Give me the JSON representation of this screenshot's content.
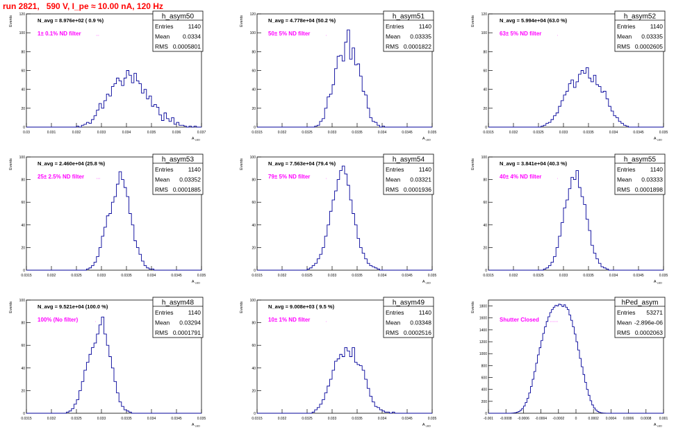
{
  "page_title": "run 2821,   590 V, I_pe ≈ 10.00 nA, 120 Hz",
  "colors": {
    "title": "#ff0000",
    "hist_line": "#000099",
    "filter_label": "#ff00ff",
    "frame": "#000000"
  },
  "chart_data": [
    {
      "type": "bar",
      "name": "h_asym50",
      "navg": "N_avg = 8.976e+02 ( 0.9 %)",
      "filter": "1± 0.1% ND filter",
      "stats": {
        "entries_label": "Entries",
        "entries": "1140",
        "mean_label": "Mean",
        "mean": "0.0334",
        "rms_label": "RMS",
        "rms": "0.0005801"
      },
      "xlim": [
        0.03,
        0.037
      ],
      "ylim": [
        0,
        120
      ],
      "xticks": [
        "0.03",
        "0.031",
        "0.032",
        "0.033",
        "0.034",
        "0.035",
        "0.036",
        "0.037"
      ],
      "yticks": [
        "0",
        "20",
        "40",
        "60",
        "80",
        "100",
        "120"
      ],
      "ylabel": "Events",
      "xlabel": "A_LED",
      "bin_start": 0.03,
      "bin_width": 0.0001,
      "values": [
        0,
        0,
        0,
        0,
        0,
        0,
        0,
        0,
        0,
        0,
        0,
        0,
        0,
        0,
        0,
        0,
        0,
        0,
        0,
        0,
        1,
        0,
        2,
        3,
        5,
        4,
        8,
        12,
        18,
        25,
        20,
        28,
        35,
        33,
        43,
        46,
        52,
        49,
        44,
        52,
        60,
        55,
        47,
        57,
        49,
        46,
        36,
        40,
        30,
        33,
        22,
        24,
        21,
        13,
        7,
        15,
        9,
        6,
        10,
        3,
        5,
        2,
        2,
        1,
        0,
        1,
        0,
        1,
        0,
        0
      ]
    },
    {
      "type": "bar",
      "name": "h_asym51",
      "navg": "N_avg = 4.778e+04 (50.2 %)",
      "filter": "50± 5% ND filter",
      "stats": {
        "entries_label": "Entries",
        "entries": "1140",
        "mean_label": "Mean",
        "mean": "0.03335",
        "rms_label": "RMS",
        "rms": "0.0001822"
      },
      "xlim": [
        0.0315,
        0.035
      ],
      "ylim": [
        0,
        120
      ],
      "xticks": [
        "0.0315",
        "0.032",
        "0.0325",
        "0.033",
        "0.0335",
        "0.034",
        "0.0345",
        "0.035"
      ],
      "yticks": [
        "0",
        "20",
        "40",
        "60",
        "80",
        "100",
        "120"
      ],
      "ylabel": "Events",
      "xlabel": "A_LED",
      "bin_start": 0.0315,
      "bin_width": 5e-05,
      "values": [
        0,
        0,
        0,
        0,
        0,
        0,
        0,
        0,
        0,
        0,
        0,
        0,
        0,
        0,
        0,
        0,
        0,
        0,
        0,
        0,
        0,
        0,
        0,
        1,
        2,
        6,
        9,
        20,
        32,
        35,
        45,
        62,
        75,
        76,
        70,
        90,
        103,
        72,
        84,
        66,
        67,
        54,
        38,
        34,
        20,
        10,
        6,
        5,
        2,
        0,
        1,
        0,
        0,
        0,
        0,
        0,
        0,
        0,
        0,
        0,
        0,
        0,
        0,
        0,
        0,
        0,
        0,
        0,
        0,
        0
      ]
    },
    {
      "type": "bar",
      "name": "h_asym52",
      "navg": "N_avg = 5.994e+04 (63.0 %)",
      "filter": "63± 5% ND filter",
      "stats": {
        "entries_label": "Entries",
        "entries": "1140",
        "mean_label": "Mean",
        "mean": "0.03335",
        "rms_label": "RMS",
        "rms": "0.0002605"
      },
      "xlim": [
        0.0315,
        0.035
      ],
      "ylim": [
        0,
        120
      ],
      "xticks": [
        "0.0315",
        "0.032",
        "0.0325",
        "0.033",
        "0.0335",
        "0.034",
        "0.0345",
        "0.035"
      ],
      "yticks": [
        "0",
        "20",
        "40",
        "60",
        "80",
        "100",
        "120"
      ],
      "ylabel": "Events",
      "xlabel": "A_LED",
      "bin_start": 0.0315,
      "bin_width": 5e-05,
      "values": [
        0,
        0,
        0,
        0,
        0,
        0,
        0,
        0,
        0,
        0,
        0,
        0,
        0,
        0,
        0,
        0,
        0,
        0,
        0,
        0,
        0,
        1,
        2,
        4,
        5,
        8,
        12,
        15,
        22,
        28,
        34,
        38,
        46,
        50,
        42,
        48,
        56,
        60,
        57,
        63,
        52,
        48,
        55,
        45,
        43,
        37,
        38,
        30,
        22,
        17,
        12,
        10,
        6,
        4,
        2,
        1,
        0,
        0,
        0,
        0,
        0,
        0,
        0,
        0,
        0,
        0,
        0,
        0,
        0,
        0
      ]
    },
    {
      "type": "bar",
      "name": "h_asym53",
      "navg": "N_avg = 2.460e+04 (25.8 %)",
      "filter": "25± 2.5% ND filter",
      "stats": {
        "entries_label": "Entries",
        "entries": "1140",
        "mean_label": "Mean",
        "mean": "0.03352",
        "rms_label": "RMS",
        "rms": "0.0001885"
      },
      "xlim": [
        0.0315,
        0.035
      ],
      "ylim": [
        0,
        100
      ],
      "xticks": [
        "0.0315",
        "0.032",
        "0.0325",
        "0.033",
        "0.0335",
        "0.034",
        "0.0345",
        "0.035"
      ],
      "yticks": [
        "0",
        "20",
        "40",
        "60",
        "80",
        "100"
      ],
      "ylabel": "Events",
      "xlabel": "A_LED",
      "bin_start": 0.0315,
      "bin_width": 5e-05,
      "values": [
        0,
        0,
        0,
        0,
        0,
        0,
        0,
        0,
        0,
        0,
        0,
        0,
        0,
        0,
        0,
        0,
        0,
        0,
        0,
        0,
        0,
        0,
        0,
        0,
        1,
        2,
        4,
        7,
        12,
        20,
        30,
        38,
        48,
        50,
        60,
        65,
        76,
        87,
        80,
        73,
        65,
        50,
        40,
        26,
        20,
        14,
        8,
        4,
        2,
        1,
        1,
        0,
        0,
        0,
        0,
        0,
        0,
        0,
        0,
        0,
        0,
        0,
        0,
        0,
        0,
        0,
        0,
        0,
        0,
        0
      ]
    },
    {
      "type": "bar",
      "name": "h_asym54",
      "navg": "N_avg = 7.563e+04 (79.4 %)",
      "filter": "79± 5% ND filter",
      "stats": {
        "entries_label": "Entries",
        "entries": "1140",
        "mean_label": "Mean",
        "mean": "0.03321",
        "rms_label": "RMS",
        "rms": "0.0001936"
      },
      "xlim": [
        0.0315,
        0.035
      ],
      "ylim": [
        0,
        100
      ],
      "xticks": [
        "0.0315",
        "0.032",
        "0.0325",
        "0.033",
        "0.0335",
        "0.034",
        "0.0345",
        "0.035"
      ],
      "yticks": [
        "0",
        "20",
        "40",
        "60",
        "80",
        "100"
      ],
      "ylabel": "Events",
      "xlabel": "A_LED",
      "bin_start": 0.0315,
      "bin_width": 5e-05,
      "values": [
        0,
        0,
        0,
        0,
        0,
        0,
        0,
        0,
        0,
        0,
        0,
        0,
        0,
        0,
        0,
        0,
        0,
        0,
        0,
        0,
        1,
        2,
        4,
        6,
        10,
        14,
        20,
        30,
        40,
        52,
        62,
        70,
        80,
        88,
        92,
        85,
        75,
        62,
        50,
        40,
        28,
        20,
        15,
        10,
        6,
        4,
        3,
        2,
        1,
        0,
        0,
        0,
        0,
        0,
        0,
        0,
        0,
        0,
        0,
        0,
        0,
        0,
        0,
        0,
        0,
        0,
        0,
        0,
        0,
        0
      ]
    },
    {
      "type": "bar",
      "name": "h_asym55",
      "navg": "N_avg = 3.841e+04 (40.3 %)",
      "filter": "40± 4% ND filter",
      "stats": {
        "entries_label": "Entries",
        "entries": "1140",
        "mean_label": "Mean",
        "mean": "0.03333",
        "rms_label": "RMS",
        "rms": "0.0001898"
      },
      "xlim": [
        0.0315,
        0.035
      ],
      "ylim": [
        0,
        100
      ],
      "xticks": [
        "0.0315",
        "0.032",
        "0.0325",
        "0.033",
        "0.0335",
        "0.034",
        "0.0345",
        "0.035"
      ],
      "yticks": [
        "0",
        "20",
        "40",
        "60",
        "80",
        "100"
      ],
      "ylabel": "Events",
      "xlabel": "A_LED",
      "bin_start": 0.0315,
      "bin_width": 5e-05,
      "values": [
        0,
        0,
        0,
        0,
        0,
        0,
        0,
        0,
        0,
        0,
        0,
        0,
        0,
        0,
        0,
        0,
        0,
        0,
        0,
        0,
        0,
        0,
        1,
        2,
        4,
        7,
        12,
        20,
        30,
        42,
        55,
        62,
        72,
        82,
        80,
        88,
        73,
        65,
        58,
        45,
        35,
        22,
        15,
        10,
        6,
        3,
        2,
        1,
        0,
        0,
        0,
        0,
        0,
        0,
        0,
        0,
        0,
        0,
        0,
        0,
        0,
        0,
        0,
        0,
        0,
        0,
        0,
        0,
        0,
        0
      ]
    },
    {
      "type": "bar",
      "name": "h_asym48",
      "navg": "N_avg = 9.521e+04 (100.0 %)",
      "filter": "100% (No filter)",
      "stats": {
        "entries_label": "Entries",
        "entries": "1140",
        "mean_label": "Mean",
        "mean": "0.03294",
        "rms_label": "RMS",
        "rms": "0.0001791"
      },
      "xlim": [
        0.0315,
        0.035
      ],
      "ylim": [
        0,
        100
      ],
      "xticks": [
        "0.0315",
        "0.032",
        "0.0325",
        "0.033",
        "0.0335",
        "0.034",
        "0.0345",
        "0.035"
      ],
      "yticks": [
        "0",
        "20",
        "40",
        "60",
        "80",
        "100"
      ],
      "ylabel": "Events",
      "xlabel": "A_LED",
      "bin_start": 0.0315,
      "bin_width": 5e-05,
      "values": [
        0,
        0,
        0,
        0,
        0,
        0,
        0,
        0,
        0,
        0,
        0,
        0,
        0,
        0,
        0,
        0,
        1,
        2,
        4,
        8,
        12,
        20,
        28,
        38,
        45,
        52,
        58,
        62,
        70,
        78,
        85,
        70,
        60,
        50,
        40,
        28,
        18,
        10,
        6,
        3,
        2,
        1,
        0,
        0,
        0,
        0,
        0,
        0,
        0,
        0,
        0,
        0,
        0,
        0,
        0,
        0,
        0,
        0,
        0,
        0,
        0,
        0,
        0,
        0,
        0,
        0,
        0,
        0,
        0,
        0
      ]
    },
    {
      "type": "bar",
      "name": "h_asym49",
      "navg": "N_avg = 9.008e+03 ( 9.5 %)",
      "filter": "10± 1% ND filter",
      "stats": {
        "entries_label": "Entries",
        "entries": "1140",
        "mean_label": "Mean",
        "mean": "0.03348",
        "rms_label": "RMS",
        "rms": "0.0002516"
      },
      "xlim": [
        0.0315,
        0.035
      ],
      "ylim": [
        0,
        100
      ],
      "xticks": [
        "0.0315",
        "0.032",
        "0.0325",
        "0.033",
        "0.0335",
        "0.034",
        "0.0345",
        "0.035"
      ],
      "yticks": [
        "0",
        "20",
        "40",
        "60",
        "80",
        "100"
      ],
      "ylabel": "Events",
      "xlabel": "A_LED",
      "bin_start": 0.0315,
      "bin_width": 5e-05,
      "values": [
        0,
        0,
        0,
        0,
        0,
        0,
        0,
        0,
        0,
        0,
        0,
        0,
        0,
        0,
        0,
        0,
        0,
        0,
        0,
        0,
        0,
        0,
        1,
        3,
        5,
        8,
        12,
        18,
        24,
        30,
        38,
        46,
        48,
        52,
        50,
        58,
        55,
        50,
        58,
        45,
        43,
        42,
        38,
        30,
        22,
        15,
        10,
        6,
        5,
        3,
        2,
        1,
        1,
        0,
        1,
        0,
        0,
        0,
        0,
        0,
        0,
        0,
        0,
        0,
        0,
        0,
        0,
        0,
        0,
        0
      ]
    },
    {
      "type": "bar",
      "name": "hPed_asym",
      "navg": "",
      "filter": "Shutter Closed",
      "stats": {
        "entries_label": "Entries",
        "entries": "53271",
        "mean_label": "Mean",
        "mean": "-2.896e-06",
        "rms_label": "RMS",
        "rms": "0.0002063"
      },
      "xlim": [
        -0.001,
        0.001
      ],
      "ylim": [
        0,
        1900
      ],
      "xticks": [
        "-0.001",
        "-0.0008",
        "-0.0006",
        "-0.0004",
        "-0.0002",
        "0",
        "0.0002",
        "0.0004",
        "0.0006",
        "0.0008",
        "0.001"
      ],
      "yticks": [
        "0",
        "200",
        "400",
        "600",
        "800",
        "1000",
        "1200",
        "1400",
        "1600",
        "1800"
      ],
      "ylabel": "Events",
      "xlabel": "A_LED",
      "bin_start": -0.001,
      "bin_width": 2e-05,
      "values": [
        0,
        0,
        0,
        0,
        0,
        0,
        0,
        0,
        0,
        0,
        0,
        0,
        0,
        2,
        5,
        10,
        18,
        30,
        50,
        80,
        120,
        180,
        250,
        340,
        450,
        570,
        700,
        840,
        980,
        1100,
        1220,
        1340,
        1450,
        1540,
        1620,
        1690,
        1740,
        1780,
        1810,
        1800,
        1830,
        1820,
        1790,
        1820,
        1780,
        1740,
        1650,
        1560,
        1450,
        1330,
        1200,
        1060,
        920,
        780,
        650,
        520,
        400,
        300,
        210,
        140,
        90,
        55,
        30,
        15,
        8,
        4,
        2,
        0,
        0,
        0,
        0,
        0,
        0,
        0,
        0,
        0,
        0,
        0,
        0,
        0,
        0,
        0,
        0,
        0,
        0,
        0,
        0,
        0,
        0,
        0,
        0,
        0,
        0,
        0,
        0,
        0,
        0,
        0,
        0,
        0
      ]
    }
  ]
}
